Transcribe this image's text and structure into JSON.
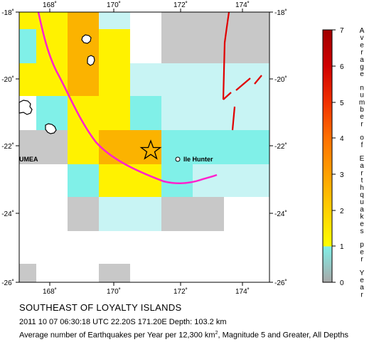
{
  "map": {
    "lon_ticks": [
      "168˚",
      "170˚",
      "172˚",
      "174˚"
    ],
    "lat_ticks": [
      "-18˚",
      "-20˚",
      "-22˚",
      "-24˚",
      "-26˚"
    ],
    "places": {
      "ile_hunter": "Ile Hunter",
      "umea": "UMEA"
    },
    "epicenter_symbol": "star",
    "colors": {
      "zero": "#c8c8c8",
      "one": "#80f0e8",
      "light_cyan": "#c8f4f4",
      "yellow": "#fff200",
      "orange": "#fbb300",
      "trench": "#ff22cc",
      "fault": "#e00000"
    }
  },
  "colorbar": {
    "ticks": [
      "0",
      "1",
      "2",
      "3",
      "4",
      "5",
      "6",
      "7"
    ],
    "label": "Average number of Earthquakes per Year"
  },
  "caption": {
    "title": "SOUTHEAST OF LOYALTY ISLANDS",
    "event": "2011 10 07 06:30:18 UTC 22.20S 171.20E Depth: 103.2 km",
    "avg_prefix": "Average number of Earthquakes per Year per 12,300 km",
    "avg_sup": "2",
    "avg_suffix": ", Magnitude 5 and Greater, All Depths"
  }
}
